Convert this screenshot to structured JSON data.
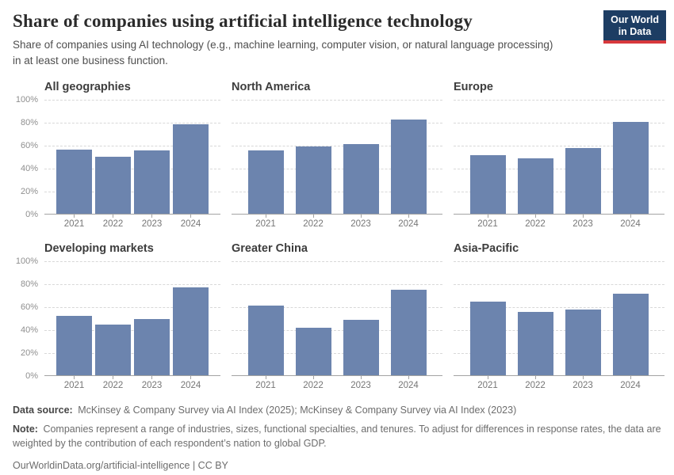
{
  "header": {
    "title": "Share of companies using artificial intelligence technology",
    "subtitle": "Share of companies using AI technology (e.g., machine learning, computer vision, or natural language processing) in at least one business function.",
    "logo": {
      "line1": "Our World",
      "line2": "in Data",
      "bg_color": "#1d3d63",
      "accent_color": "#d7383c"
    }
  },
  "chart_data": {
    "type": "bar",
    "categories": [
      "2021",
      "2022",
      "2023",
      "2024"
    ],
    "facets": [
      {
        "title": "All geographies",
        "values": [
          56,
          50,
          55,
          78
        ]
      },
      {
        "title": "North America",
        "values": [
          55,
          59,
          61,
          82
        ]
      },
      {
        "title": "Europe",
        "values": [
          51,
          48,
          57,
          80
        ]
      },
      {
        "title": "Developing markets",
        "values": [
          52,
          44,
          49,
          77
        ]
      },
      {
        "title": "Greater China",
        "values": [
          61,
          41,
          48,
          75
        ]
      },
      {
        "title": "Asia-Pacific",
        "values": [
          64,
          55,
          57,
          71
        ]
      }
    ],
    "y_ticks": [
      "0%",
      "20%",
      "40%",
      "60%",
      "80%",
      "100%"
    ],
    "ylim": [
      0,
      100
    ],
    "unit": "%",
    "grid": true,
    "legend": "none",
    "bar_color": "#6c84ae",
    "gridline_color": "#d8d8d8",
    "axis_color": "#a3a3a3"
  },
  "footer": {
    "data_source_label": "Data source:",
    "data_source": "McKinsey & Company Survey via AI Index (2025); McKinsey & Company Survey via AI Index (2023)",
    "note_label": "Note:",
    "note": "Companies represent a range of industries, sizes, functional specialties, and tenures. To adjust for differences in response rates, the data are weighted by the contribution of each respondent’s nation to global GDP.",
    "attribution": "OurWorldinData.org/artificial-intelligence | CC BY"
  }
}
